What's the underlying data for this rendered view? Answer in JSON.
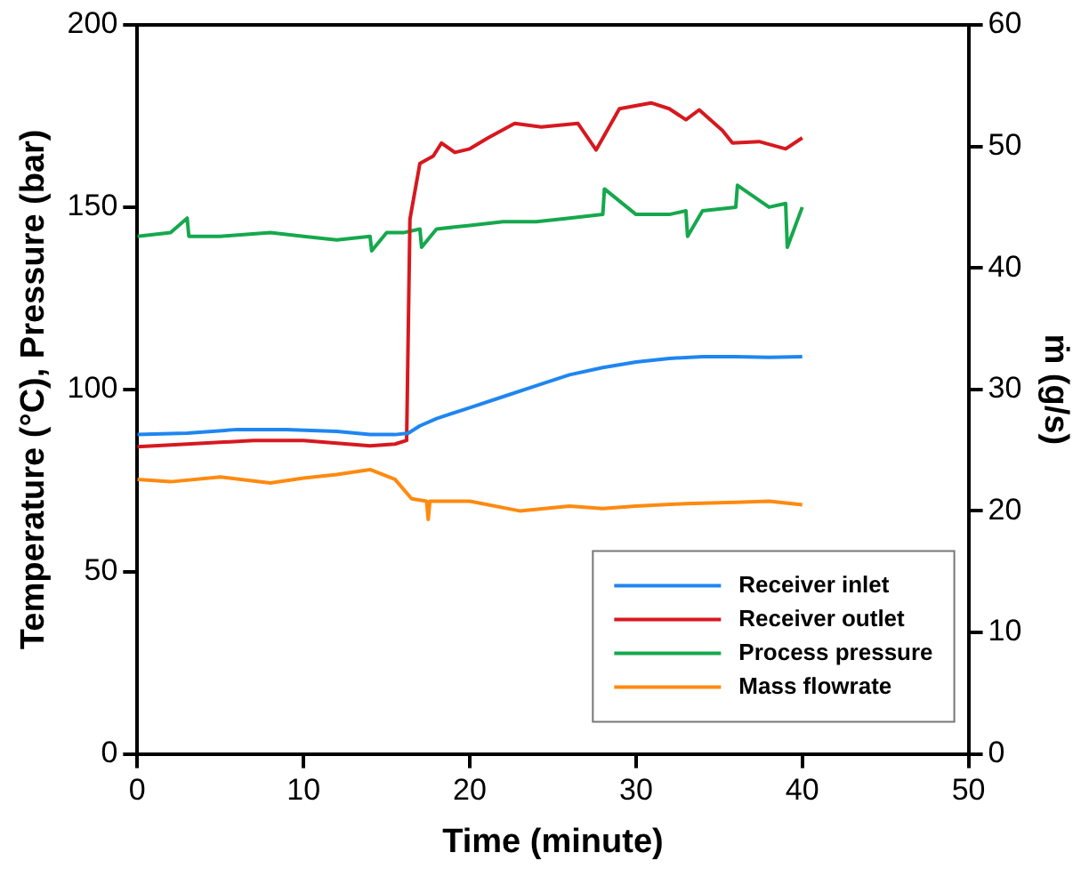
{
  "chart_data": {
    "type": "line",
    "xlabel": "Time (minute)",
    "ylabel": "Temperature (°C), Pressure (bar)",
    "y2label": "ṁ (g/s)",
    "xlim": [
      0,
      50
    ],
    "xticks": [
      0,
      10,
      20,
      30,
      40,
      50
    ],
    "ylim": [
      0,
      200
    ],
    "yticks": [
      0,
      50,
      100,
      150,
      200
    ],
    "y2lim": [
      0,
      60
    ],
    "y2ticks": [
      0,
      10,
      20,
      30,
      40,
      50,
      60
    ],
    "grid": false,
    "legend": "bottom right",
    "marker": "none",
    "line_style": "solid",
    "series": [
      {
        "name": "Receiver inlet",
        "color": "#1f86f0",
        "x": [
          0,
          3,
          6,
          9,
          12,
          14,
          15.5,
          16.3,
          17,
          18,
          20,
          22,
          24,
          26,
          28,
          30,
          32,
          34,
          36,
          38,
          40
        ],
        "values": [
          87.6,
          88,
          89,
          89,
          88.5,
          87.6,
          87.6,
          88,
          90,
          92,
          95,
          98,
          101,
          104,
          106,
          107.5,
          108.5,
          109,
          109,
          108.8,
          109
        ]
      },
      {
        "name": "Receiver outlet",
        "color": "#d7181f",
        "x": [
          0,
          3,
          7,
          10,
          14,
          15.5,
          16.2,
          16.4,
          17,
          17.8,
          18.3,
          19.1,
          20,
          21.1,
          22.7,
          24.3,
          26.5,
          27.6,
          29,
          30.9,
          32,
          33,
          33.8,
          35.2,
          35.8,
          37.4,
          39,
          40
        ],
        "values": [
          84.3,
          85,
          86,
          86,
          84.5,
          85,
          86,
          146.7,
          162,
          164,
          167.6,
          165,
          166,
          169,
          173,
          172,
          173,
          165.7,
          177,
          178.6,
          177,
          174,
          176.7,
          171,
          167.6,
          168,
          166,
          169
        ]
      },
      {
        "name": "Process pressure",
        "color": "#15a84d",
        "x": [
          0,
          2,
          3,
          3.1,
          5,
          8,
          10,
          12,
          14,
          14.1,
          15,
          16,
          17,
          17.1,
          18,
          20,
          22,
          24,
          26,
          28,
          28.1,
          30,
          32,
          33,
          33.1,
          34,
          36,
          36.1,
          38,
          39,
          39.1,
          40
        ],
        "values": [
          142,
          143,
          147,
          142,
          142,
          143,
          142,
          141,
          142,
          138,
          143,
          143,
          144,
          139,
          144,
          145,
          146,
          146,
          147,
          148,
          155,
          148,
          148,
          149,
          142,
          149,
          150,
          156,
          150,
          151,
          139,
          150
        ]
      },
      {
        "name": "Mass flowrate",
        "color": "#ff8a10",
        "axis": "y2",
        "x": [
          0,
          2,
          5,
          8,
          10,
          12,
          14,
          15.5,
          16.5,
          17.4,
          17.5,
          17.6,
          19,
          20,
          23,
          26,
          28,
          30,
          33,
          36,
          38,
          40
        ],
        "values": [
          22.6,
          22.4,
          22.8,
          22.3,
          22.7,
          23,
          23.4,
          22.6,
          21,
          20.8,
          19.3,
          20.8,
          20.8,
          20.8,
          20,
          20.4,
          20.2,
          20.4,
          20.6,
          20.7,
          20.8,
          20.5
        ]
      }
    ]
  }
}
